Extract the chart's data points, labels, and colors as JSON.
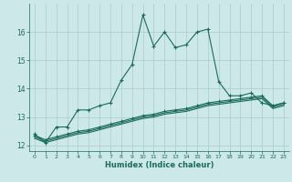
{
  "xlabel": "Humidex (Indice chaleur)",
  "bg_color": "#cce8e8",
  "grid_color": "#aacccc",
  "line_color": "#1a6b5a",
  "xlim": [
    -0.5,
    23.5
  ],
  "ylim": [
    11.8,
    17.0
  ],
  "yticks": [
    12,
    13,
    14,
    15,
    16
  ],
  "xticks": [
    0,
    1,
    2,
    3,
    4,
    5,
    6,
    7,
    8,
    9,
    10,
    11,
    12,
    13,
    14,
    15,
    16,
    17,
    18,
    19,
    20,
    21,
    22,
    23
  ],
  "series1_x": [
    0,
    1,
    2,
    3,
    4,
    5,
    6,
    7,
    8,
    9,
    10,
    11,
    12,
    13,
    14,
    15,
    16,
    17,
    18,
    19,
    20,
    21,
    22,
    23
  ],
  "series1_y": [
    12.4,
    12.1,
    12.65,
    12.65,
    13.25,
    13.25,
    13.4,
    13.5,
    14.3,
    14.85,
    16.6,
    15.5,
    16.0,
    15.45,
    15.55,
    16.0,
    16.1,
    14.25,
    13.75,
    13.75,
    13.85,
    13.5,
    13.4,
    13.5
  ],
  "series2_x": [
    0,
    1,
    2,
    3,
    4,
    5,
    6,
    7,
    8,
    9,
    10,
    11,
    12,
    13,
    14,
    15,
    16,
    17,
    18,
    19,
    20,
    21,
    22,
    23
  ],
  "series2_y": [
    12.35,
    12.2,
    12.3,
    12.4,
    12.5,
    12.55,
    12.65,
    12.75,
    12.85,
    12.95,
    13.05,
    13.1,
    13.2,
    13.25,
    13.3,
    13.4,
    13.5,
    13.55,
    13.6,
    13.65,
    13.7,
    13.75,
    13.4,
    13.5
  ],
  "series3_x": [
    0,
    1,
    2,
    3,
    4,
    5,
    6,
    7,
    8,
    9,
    10,
    11,
    12,
    13,
    14,
    15,
    16,
    17,
    18,
    19,
    20,
    21,
    22,
    23
  ],
  "series3_y": [
    12.3,
    12.15,
    12.25,
    12.35,
    12.45,
    12.5,
    12.6,
    12.7,
    12.8,
    12.9,
    13.0,
    13.05,
    13.15,
    13.2,
    13.25,
    13.35,
    13.45,
    13.5,
    13.55,
    13.6,
    13.65,
    13.7,
    13.35,
    13.45
  ],
  "series4_x": [
    0,
    1,
    2,
    3,
    4,
    5,
    6,
    7,
    8,
    9,
    10,
    11,
    12,
    13,
    14,
    15,
    16,
    17,
    18,
    19,
    20,
    21,
    22,
    23
  ],
  "series4_y": [
    12.25,
    12.1,
    12.2,
    12.3,
    12.4,
    12.45,
    12.55,
    12.65,
    12.75,
    12.85,
    12.95,
    13.0,
    13.1,
    13.15,
    13.2,
    13.3,
    13.4,
    13.45,
    13.5,
    13.55,
    13.6,
    13.65,
    13.3,
    13.4
  ]
}
